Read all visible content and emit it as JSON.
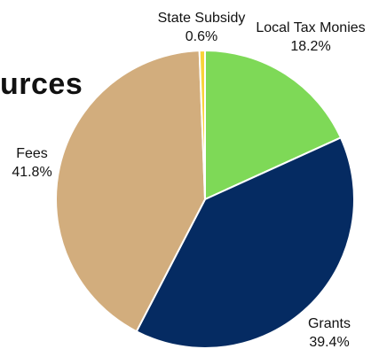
{
  "heading_fragment": "urces",
  "chart_data": {
    "type": "pie",
    "slices": [
      {
        "label": "Local Tax Monies",
        "value": 18.2,
        "value_label": "18.2%",
        "color": "#7ed957"
      },
      {
        "label": "Grants",
        "value": 39.4,
        "value_label": "39.4%",
        "color": "#052b62"
      },
      {
        "label": "Fees",
        "value": 41.8,
        "value_label": "41.8%",
        "color": "#d2ad7d"
      },
      {
        "label": "State Subsidy",
        "value": 0.6,
        "value_label": "0.6%",
        "color": "#f7d33a"
      }
    ]
  }
}
